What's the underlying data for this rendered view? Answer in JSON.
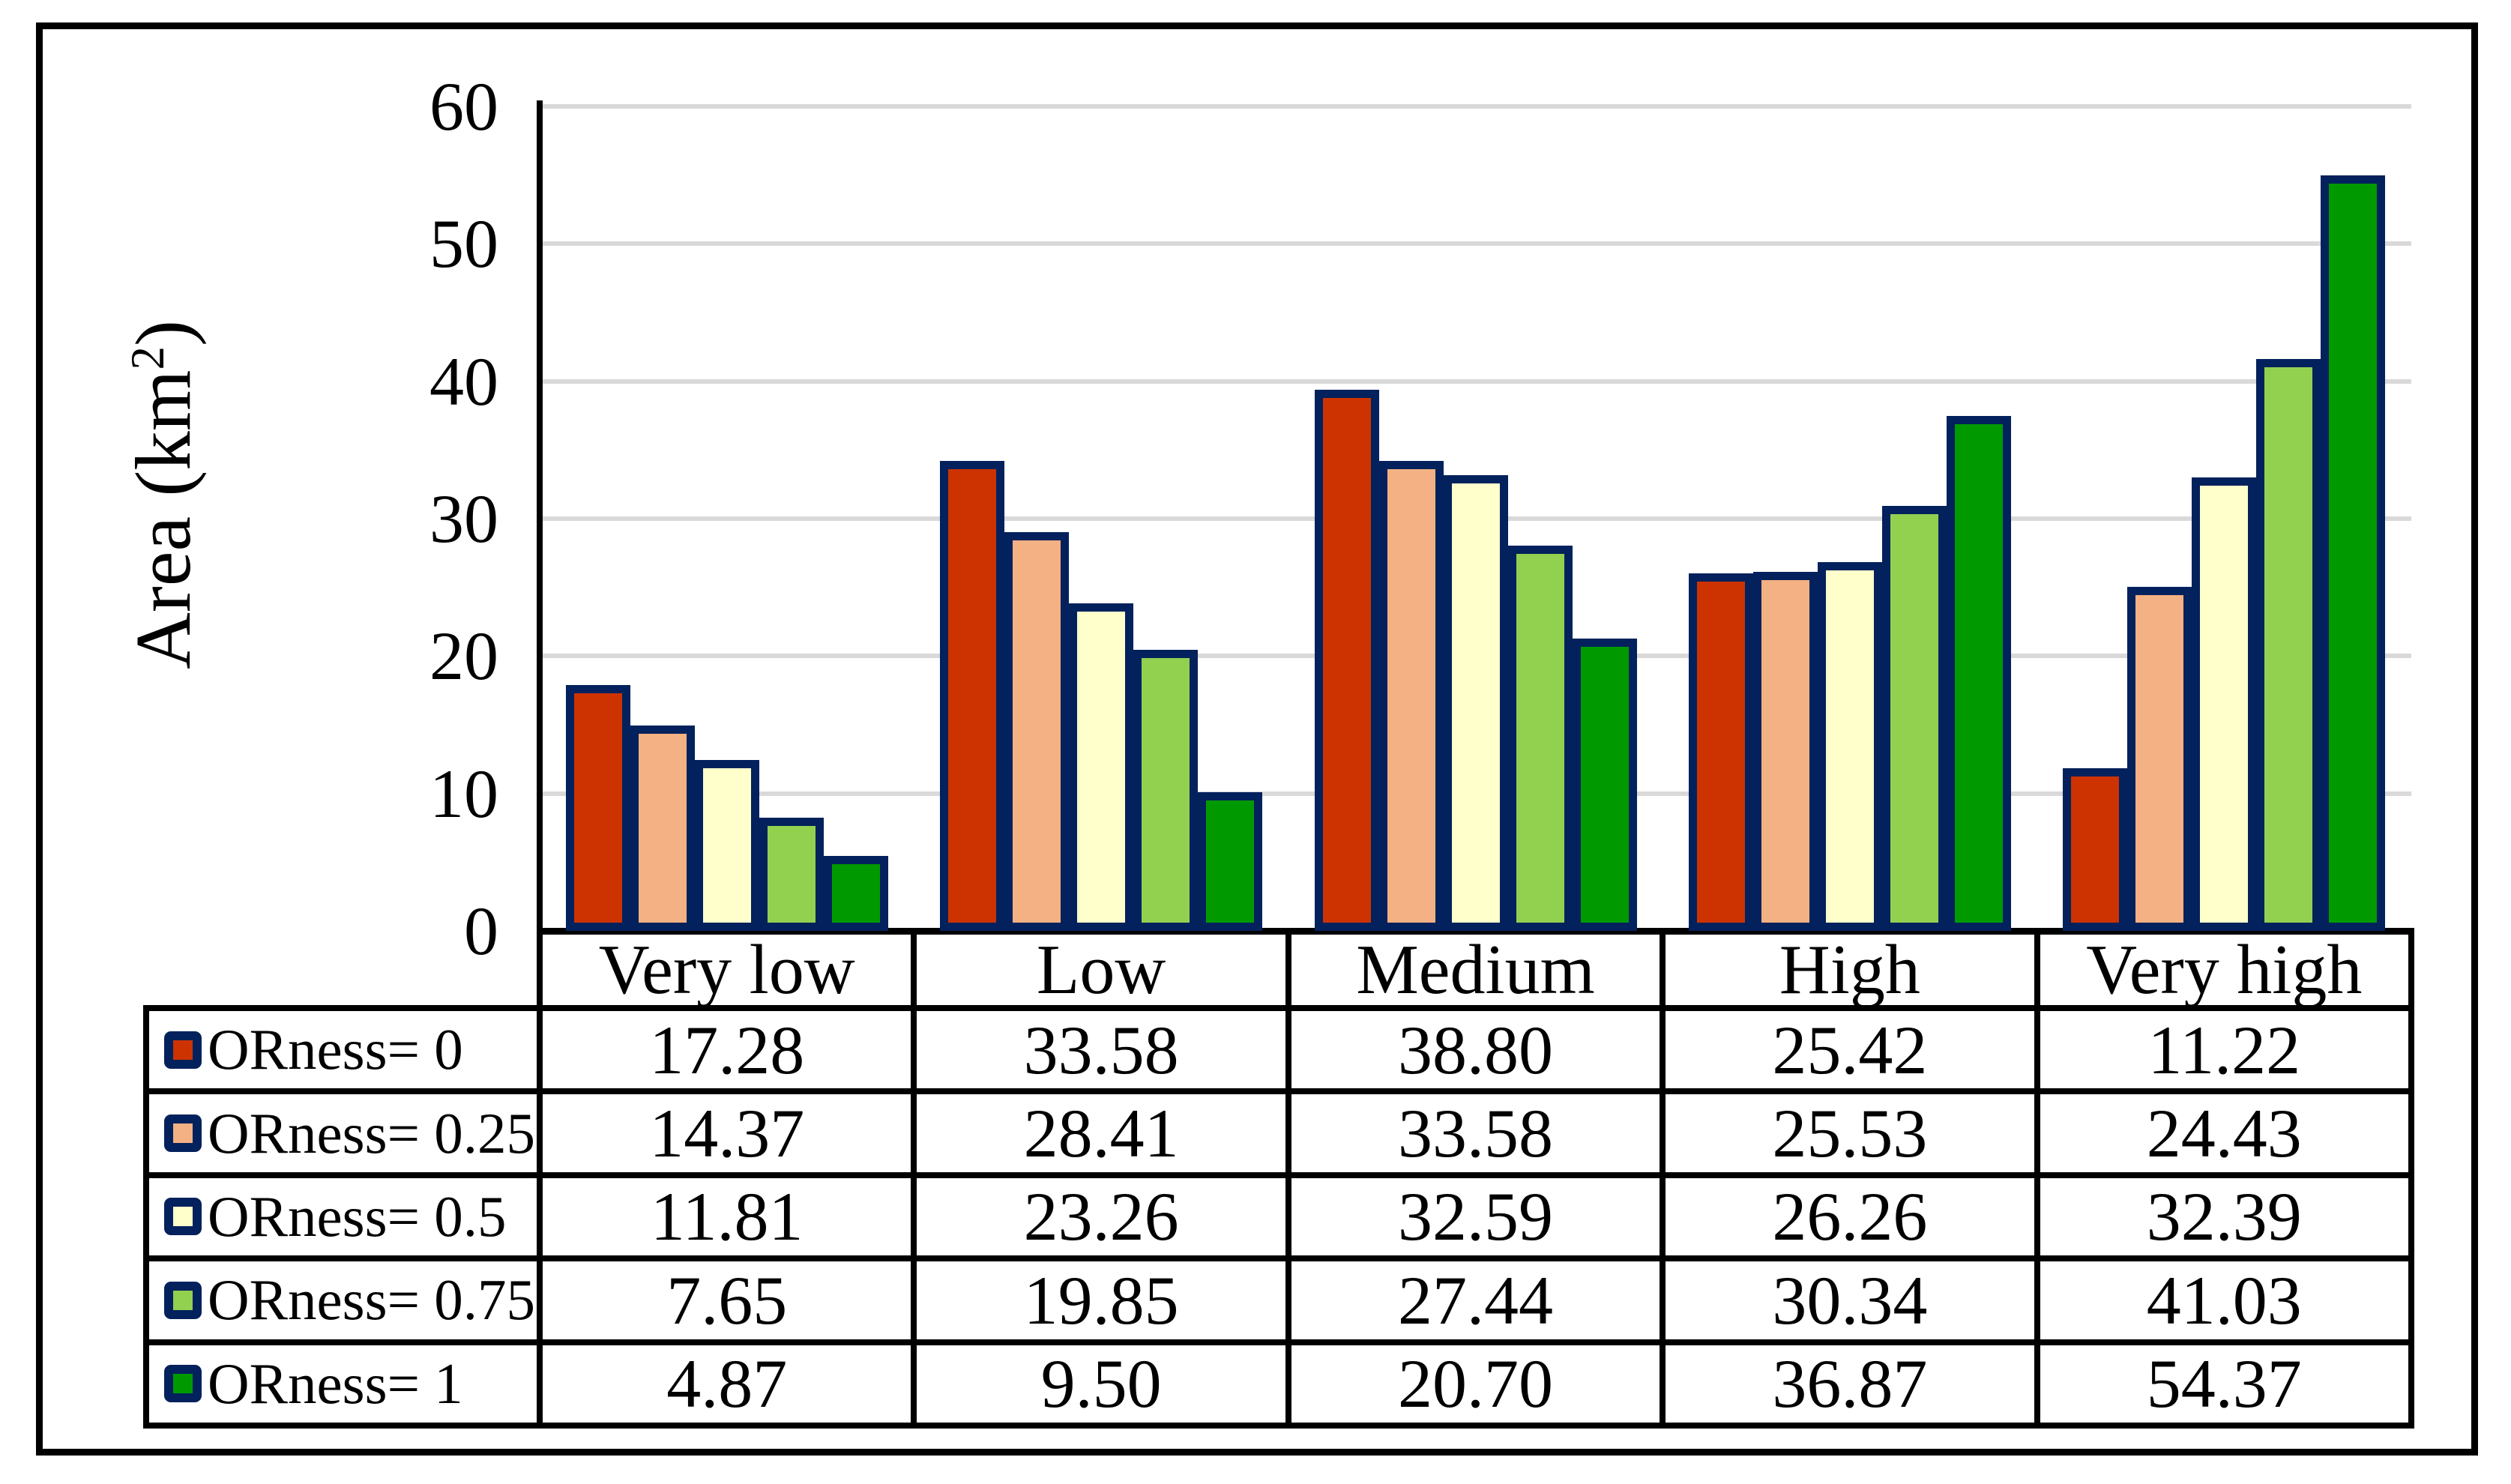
{
  "figure": {
    "y_axis": {
      "label_prefix": "Area (km",
      "label_sup": "2",
      "label_suffix": ")",
      "tick_labels": [
        "0",
        "10",
        "20",
        "30",
        "40",
        "50",
        "60"
      ]
    },
    "colors": {
      "bar_border": "#03215C",
      "gridline": "#D9D9D9",
      "axis": "#000000",
      "background": "#FFFFFF",
      "text": "#000000"
    }
  },
  "chart_data": {
    "type": "bar",
    "title": "",
    "xlabel": "",
    "ylabel": "Area (km²)",
    "ylim": [
      0,
      60
    ],
    "yticks": [
      0,
      10,
      20,
      30,
      40,
      50,
      60
    ],
    "grid": true,
    "legend_position": "table-left-column",
    "categories": [
      "Very low",
      "Low",
      "Medium",
      "High",
      "Very high"
    ],
    "series": [
      {
        "name": "ORness= 0",
        "color": "#CC3300",
        "values": [
          17.28,
          33.58,
          38.8,
          25.42,
          11.22
        ]
      },
      {
        "name": "ORness= 0.25",
        "color": "#F4B183",
        "values": [
          14.37,
          28.41,
          33.58,
          25.53,
          24.43
        ]
      },
      {
        "name": "ORness= 0.5",
        "color": "#FFFFCC",
        "values": [
          11.81,
          23.26,
          32.59,
          26.26,
          32.39
        ]
      },
      {
        "name": "ORness= 0.75",
        "color": "#92D050",
        "values": [
          7.65,
          19.85,
          27.44,
          30.34,
          41.03
        ]
      },
      {
        "name": "ORness= 1",
        "color": "#009A00",
        "values": [
          4.87,
          9.5,
          20.7,
          36.87,
          54.37
        ]
      }
    ]
  }
}
